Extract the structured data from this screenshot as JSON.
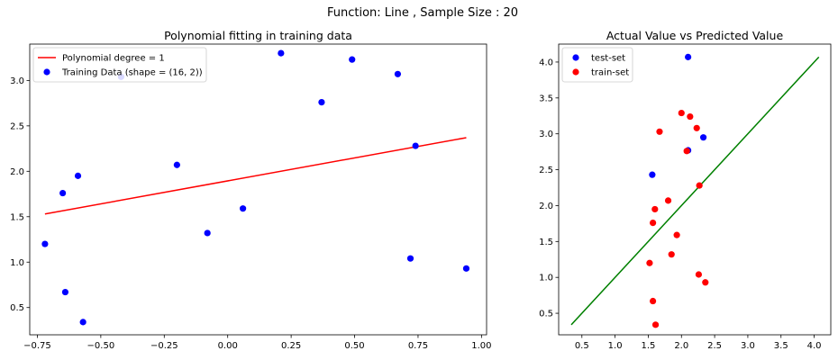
{
  "figure": {
    "suptitle": "Function: Line , Sample Size : 20"
  },
  "chart_data": [
    {
      "type": "scatter",
      "title": "Polynomial fitting in training data",
      "xlabel": "",
      "ylabel": "",
      "xlim": [
        -0.78,
        1.02
      ],
      "ylim": [
        0.2,
        3.4
      ],
      "xticks": [
        -0.75,
        -0.5,
        -0.25,
        0.0,
        0.25,
        0.5,
        0.75,
        1.0
      ],
      "xtick_labels": [
        "−0.75",
        "−0.50",
        "−0.25",
        "0.00",
        "0.25",
        "0.50",
        "0.75",
        "1.00"
      ],
      "yticks": [
        0.5,
        1.0,
        1.5,
        2.0,
        2.5,
        3.0
      ],
      "ytick_labels": [
        "0.5",
        "1.0",
        "1.5",
        "2.0",
        "2.5",
        "3.0"
      ],
      "grid": false,
      "legend": "upper left",
      "series": [
        {
          "name": "Polynomial degree = 1",
          "kind": "line",
          "color": "#ff0000",
          "points": [
            [
              -0.72,
              1.53
            ],
            [
              0.94,
              2.37
            ]
          ]
        },
        {
          "name": "Training Data (shape = (16, 2))",
          "kind": "scatter",
          "color": "#0000ff",
          "points": [
            [
              -0.72,
              1.2
            ],
            [
              -0.65,
              1.76
            ],
            [
              -0.64,
              0.67
            ],
            [
              -0.59,
              1.95
            ],
            [
              -0.57,
              0.34
            ],
            [
              -0.42,
              3.04
            ],
            [
              -0.2,
              2.07
            ],
            [
              -0.08,
              1.32
            ],
            [
              0.06,
              1.59
            ],
            [
              0.21,
              3.3
            ],
            [
              0.37,
              2.76
            ],
            [
              0.49,
              3.23
            ],
            [
              0.67,
              3.07
            ],
            [
              0.72,
              1.04
            ],
            [
              0.74,
              2.28
            ],
            [
              0.94,
              0.93
            ]
          ]
        }
      ]
    },
    {
      "type": "scatter",
      "title": "Actual Value vs Predicted Value",
      "xlabel": "",
      "ylabel": "",
      "xlim": [
        0.15,
        4.25
      ],
      "ylim": [
        0.2,
        4.25
      ],
      "xticks": [
        0.5,
        1.0,
        1.5,
        2.0,
        2.5,
        3.0,
        3.5,
        4.0
      ],
      "xtick_labels": [
        "0.5",
        "1.0",
        "1.5",
        "2.0",
        "2.5",
        "3.0",
        "3.5",
        "4.0"
      ],
      "yticks": [
        0.5,
        1.0,
        1.5,
        2.0,
        2.5,
        3.0,
        3.5,
        4.0
      ],
      "ytick_labels": [
        "0.5",
        "1.0",
        "1.5",
        "2.0",
        "2.5",
        "3.0",
        "3.5",
        "4.0"
      ],
      "grid": false,
      "legend": "upper left",
      "series": [
        {
          "name": "",
          "kind": "line",
          "color": "#008000",
          "points": [
            [
              0.34,
              0.34
            ],
            [
              4.07,
              4.07
            ]
          ]
        },
        {
          "name": "test-set",
          "kind": "scatter",
          "color": "#0000ff",
          "points": [
            [
              2.1,
              4.07
            ],
            [
              1.56,
              2.43
            ],
            [
              2.1,
              2.77
            ],
            [
              2.33,
              2.95
            ]
          ]
        },
        {
          "name": "train-set",
          "kind": "scatter",
          "color": "#ff0000",
          "points": [
            [
              1.52,
              1.2
            ],
            [
              1.57,
              1.76
            ],
            [
              1.57,
              0.67
            ],
            [
              1.6,
              1.95
            ],
            [
              1.61,
              0.34
            ],
            [
              1.67,
              3.03
            ],
            [
              1.8,
              2.07
            ],
            [
              1.85,
              1.32
            ],
            [
              1.93,
              1.59
            ],
            [
              2.0,
              3.29
            ],
            [
              2.08,
              2.76
            ],
            [
              2.13,
              3.24
            ],
            [
              2.23,
              3.08
            ],
            [
              2.26,
              1.04
            ],
            [
              2.27,
              2.28
            ],
            [
              2.36,
              0.93
            ]
          ]
        }
      ]
    }
  ]
}
